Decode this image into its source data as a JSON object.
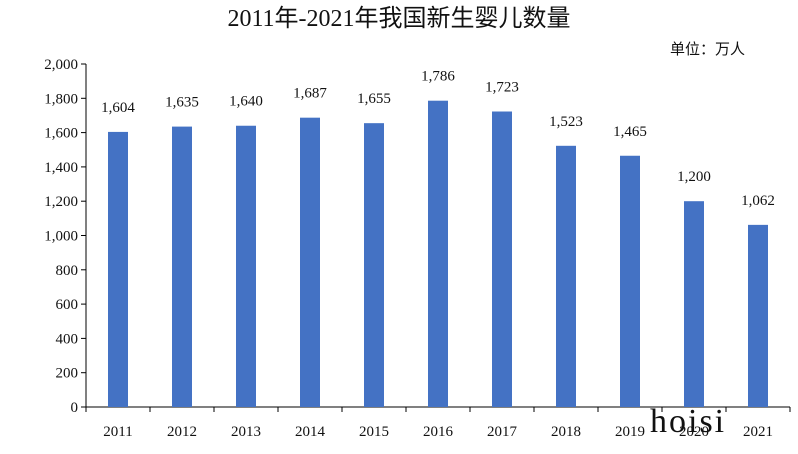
{
  "chart_data": {
    "type": "bar",
    "title": "2011年-2021年我国新生婴儿数量",
    "unit_label": "单位：万人",
    "xlabel": "",
    "ylabel": "",
    "categories": [
      "2011",
      "2012",
      "2013",
      "2014",
      "2015",
      "2016",
      "2017",
      "2018",
      "2019",
      "2020",
      "2021"
    ],
    "values": [
      1604,
      1635,
      1640,
      1687,
      1655,
      1786,
      1723,
      1523,
      1465,
      1200,
      1062
    ],
    "value_labels": [
      "1,604",
      "1,635",
      "1,640",
      "1,687",
      "1,655",
      "1,786",
      "1,723",
      "1,523",
      "1,465",
      "1,200",
      "1,062"
    ],
    "ylim": [
      0,
      2000
    ],
    "yticks": [
      "0",
      "200",
      "400",
      "600",
      "800",
      "1,000",
      "1,200",
      "1,400",
      "1,600",
      "1,800",
      "2,000"
    ],
    "bar_color": "#4472C4",
    "grid": false,
    "legend": "none"
  },
  "watermark": "hoisi",
  "watermark_color": "#f2c9c9"
}
